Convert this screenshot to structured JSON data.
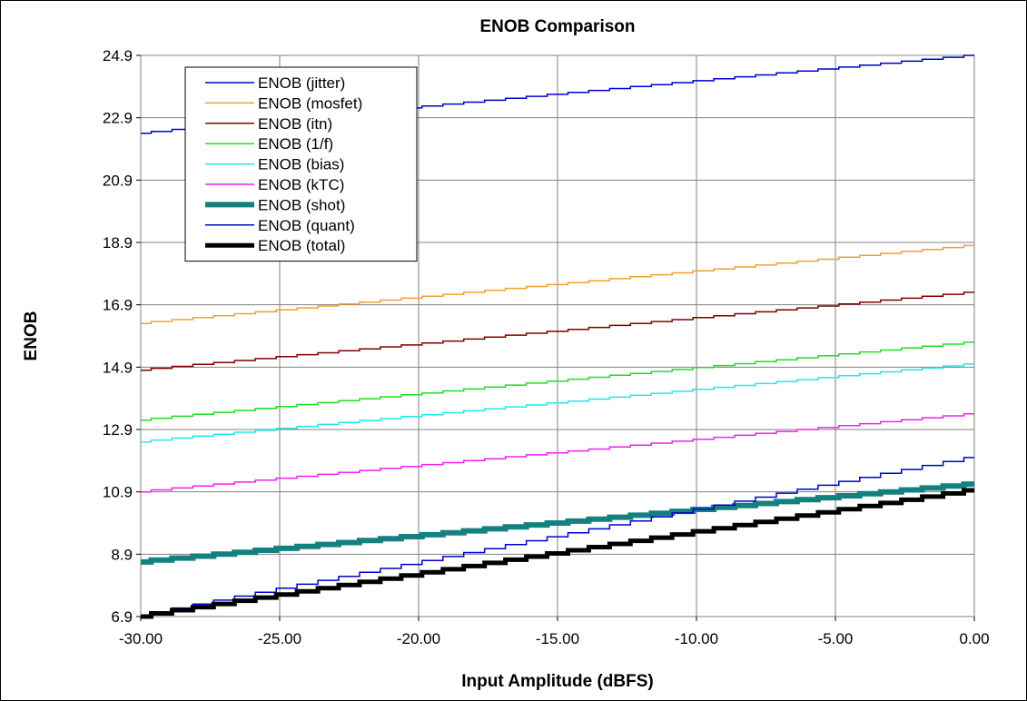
{
  "chart_data": {
    "type": "line",
    "title": "ENOB Comparison",
    "xlabel": "Input Amplitude (dBFS)",
    "ylabel": "ENOB",
    "xlim": [
      -30,
      0
    ],
    "ylim": [
      6.9,
      24.9
    ],
    "x_ticks": [
      "-30.00",
      "-25.00",
      "-20.00",
      "-15.00",
      "-10.00",
      "-5.00",
      "0.00"
    ],
    "y_ticks": [
      "6.9",
      "8.9",
      "10.9",
      "12.9",
      "14.9",
      "16.9",
      "18.9",
      "20.9",
      "22.9",
      "24.9"
    ],
    "grid": true,
    "legend_position": "top-left",
    "x": [
      -30,
      0
    ],
    "series": [
      {
        "name": "ENOB (jitter)",
        "color": "#0000cc",
        "values": [
          22.4,
          24.9
        ]
      },
      {
        "name": "ENOB (mosfet)",
        "color": "#f0a030",
        "values": [
          16.3,
          18.8
        ]
      },
      {
        "name": "ENOB (itn)",
        "color": "#800000",
        "values": [
          14.8,
          17.3
        ]
      },
      {
        "name": "ENOB (1/f)",
        "color": "#22dd22",
        "values": [
          13.2,
          15.7
        ]
      },
      {
        "name": "ENOB (bias)",
        "color": "#22e8e8",
        "values": [
          12.5,
          15.0
        ]
      },
      {
        "name": "ENOB (kTC)",
        "color": "#ee22ee",
        "values": [
          10.9,
          13.4
        ]
      },
      {
        "name": "ENOB (shot)",
        "color": "#148080",
        "values": [
          8.65,
          11.15
        ]
      },
      {
        "name": "ENOB (quant)",
        "color": "#0000cc",
        "values": [
          6.92,
          12.0
        ]
      },
      {
        "name": "ENOB (total)",
        "color": "#000000",
        "values": [
          6.9,
          10.95
        ]
      }
    ]
  }
}
